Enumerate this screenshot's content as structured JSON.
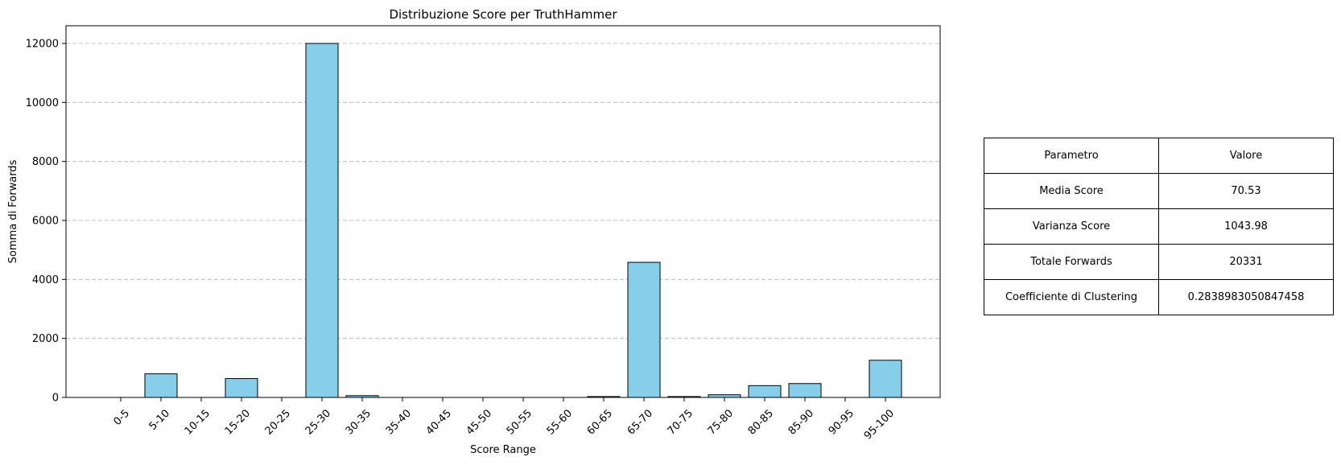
{
  "chart_data": {
    "type": "bar",
    "title": "Distribuzione Score per TruthHammer",
    "xlabel": "Score Range",
    "ylabel": "Somma di Forwards",
    "categories": [
      "0-5",
      "5-10",
      "10-15",
      "15-20",
      "20-25",
      "25-30",
      "30-35",
      "35-40",
      "40-45",
      "45-50",
      "50-55",
      "55-60",
      "60-65",
      "65-70",
      "70-75",
      "75-80",
      "80-85",
      "85-90",
      "90-95",
      "95-100"
    ],
    "values": [
      0,
      800,
      0,
      640,
      0,
      12000,
      60,
      0,
      0,
      0,
      0,
      0,
      30,
      4580,
      30,
      90,
      400,
      470,
      0,
      1260
    ],
    "ylim": [
      0,
      12600
    ],
    "yticks": [
      0,
      2000,
      4000,
      6000,
      8000,
      10000,
      12000
    ],
    "grid": "y-dashed",
    "bar_color": "#87ceeb",
    "bar_edge_color": "#000000",
    "grid_color": "#b0b0b0"
  },
  "stats_table": {
    "header": [
      "Parametro",
      "Valore"
    ],
    "rows": [
      [
        "Media Score",
        "70.53"
      ],
      [
        "Varianza Score",
        "1043.98"
      ],
      [
        "Totale Forwards",
        "20331"
      ],
      [
        "Coefficiente di Clustering",
        "0.2838983050847458"
      ]
    ]
  }
}
